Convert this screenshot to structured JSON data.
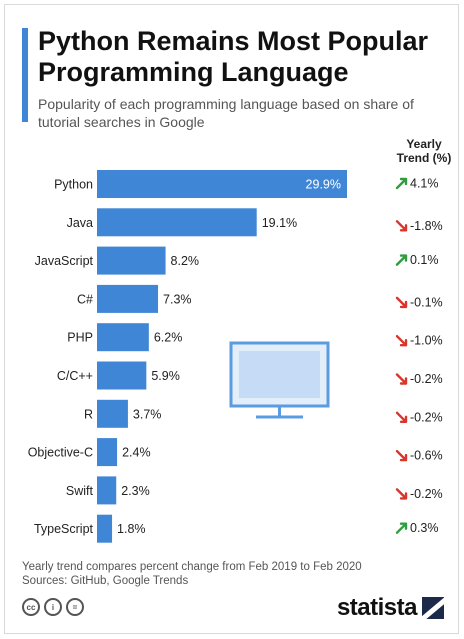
{
  "header": {
    "title": "Python Remains Most Popular Programming Language",
    "subtitle": "Popularity of each programming language based on share of tutorial searches in Google",
    "trend_header": "Yearly\nTrend (%)"
  },
  "chart_data": {
    "type": "bar",
    "orientation": "horizontal",
    "title": "Python Remains Most Popular Programming Language",
    "subtitle": "Popularity of each programming language based on share of tutorial searches in Google",
    "categories": [
      "Python",
      "Java",
      "JavaScript",
      "C#",
      "PHP",
      "C/C++",
      "R",
      "Objective-C",
      "Swift",
      "TypeScript"
    ],
    "values": [
      29.9,
      19.1,
      8.2,
      7.3,
      6.2,
      5.9,
      3.7,
      2.4,
      2.3,
      1.8
    ],
    "value_labels": [
      "29.9%",
      "19.1%",
      "8.2%",
      "7.3%",
      "6.2%",
      "5.9%",
      "3.7%",
      "2.4%",
      "2.3%",
      "1.8%"
    ],
    "trend_values": [
      4.1,
      -1.8,
      0.1,
      -0.1,
      -1.0,
      -0.2,
      -0.2,
      -0.6,
      -0.2,
      0.3
    ],
    "trend_labels": [
      "4.1%",
      "-1.8%",
      "0.1%",
      "-0.1%",
      "-1.0%",
      "-0.2%",
      "-0.2%",
      "-0.6%",
      "-0.2%",
      "0.3%"
    ],
    "xlim": [
      0,
      29.9
    ],
    "grid": false,
    "legend": "none"
  },
  "colors": {
    "bar": "#3f86d6",
    "accent": "#3f86d6",
    "trend_up": "#2e9e3e",
    "trend_down": "#d9352b"
  },
  "icons": {
    "up": "arrow-up-right-icon",
    "down": "arrow-down-right-icon",
    "decoration": "computer-monitor-icon"
  },
  "footer": {
    "note": "Yearly trend compares percent change from Feb 2019 to Feb 2020",
    "sources": "Sources: GitHub, Google Trends",
    "brand": "statista"
  }
}
